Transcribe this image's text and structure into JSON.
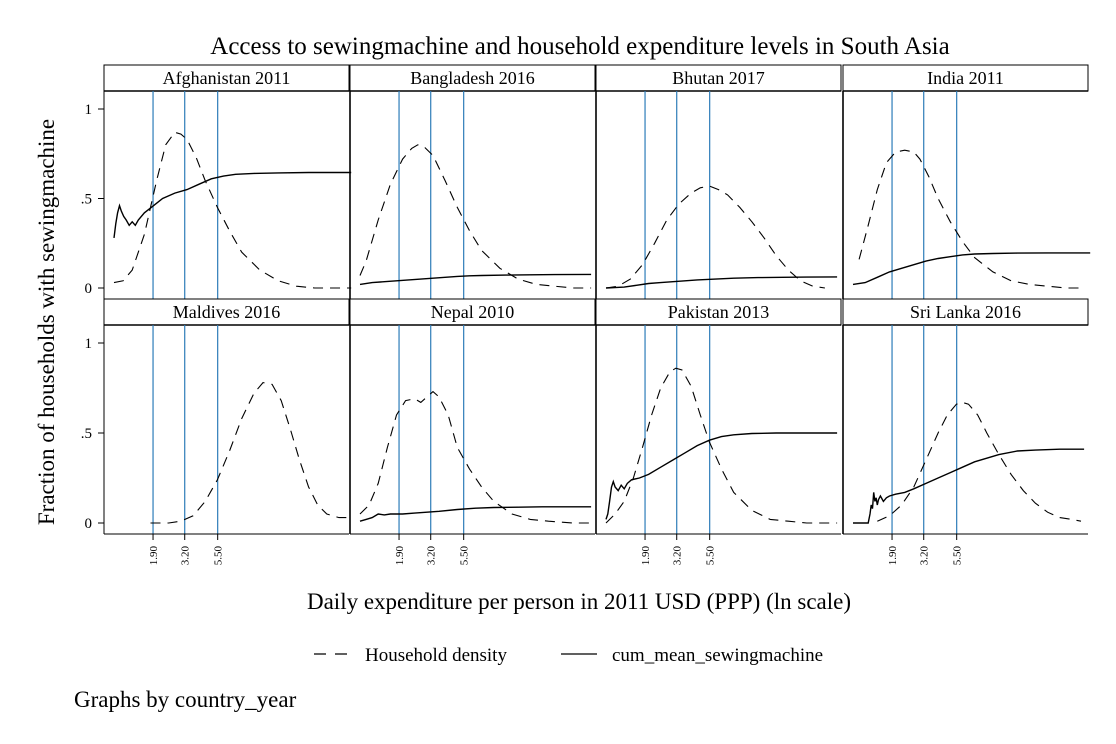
{
  "chart_data": {
    "type": "line",
    "title": "Access to sewingmachine and household expenditure levels in South Asia",
    "xlabel": "Daily expenditure per person in 2011 USD (PPP) (ln scale)",
    "ylabel": "Fraction of households with sewingmachine",
    "note": "Graphs by country_year",
    "ylim": [
      0,
      1
    ],
    "xlim": [
      0,
      3.7
    ],
    "y_ticks": [
      {
        "value": 0,
        "label": "0"
      },
      {
        "value": 0.5,
        "label": ".5"
      },
      {
        "value": 1,
        "label": "1"
      }
    ],
    "x_ticks": [
      {
        "value": 0.642,
        "label": "1.90"
      },
      {
        "value": 1.163,
        "label": "3.20"
      },
      {
        "value": 1.705,
        "label": "5.50"
      }
    ],
    "reference_lines": [
      0.642,
      1.163,
      1.705
    ],
    "reference_line_color": "#2d7cb8",
    "grid": false,
    "legend": {
      "placement": "bottom",
      "entries": [
        {
          "label": "Household density",
          "style": "dashed"
        },
        {
          "label": "cum_mean_sewingmachine",
          "style": "solid"
        }
      ]
    },
    "panels": [
      {
        "title": "Afghanistan 2011",
        "density": [
          [
            0.0,
            0.03
          ],
          [
            0.15,
            0.04
          ],
          [
            0.3,
            0.1
          ],
          [
            0.5,
            0.3
          ],
          [
            0.7,
            0.6
          ],
          [
            0.85,
            0.8
          ],
          [
            1.0,
            0.87
          ],
          [
            1.1,
            0.86
          ],
          [
            1.2,
            0.83
          ],
          [
            1.35,
            0.73
          ],
          [
            1.5,
            0.6
          ],
          [
            1.7,
            0.45
          ],
          [
            1.9,
            0.32
          ],
          [
            2.1,
            0.2
          ],
          [
            2.4,
            0.1
          ],
          [
            2.7,
            0.04
          ],
          [
            3.0,
            0.01
          ],
          [
            3.3,
            0.0
          ],
          [
            3.9,
            0.0
          ]
        ],
        "cum_mean": [
          [
            0.0,
            0.28
          ],
          [
            0.03,
            0.36
          ],
          [
            0.06,
            0.42
          ],
          [
            0.09,
            0.46
          ],
          [
            0.12,
            0.43
          ],
          [
            0.16,
            0.4
          ],
          [
            0.2,
            0.38
          ],
          [
            0.25,
            0.35
          ],
          [
            0.3,
            0.37
          ],
          [
            0.35,
            0.35
          ],
          [
            0.4,
            0.38
          ],
          [
            0.5,
            0.42
          ],
          [
            0.65,
            0.46
          ],
          [
            0.8,
            0.5
          ],
          [
            1.0,
            0.53
          ],
          [
            1.2,
            0.55
          ],
          [
            1.4,
            0.58
          ],
          [
            1.6,
            0.61
          ],
          [
            1.8,
            0.625
          ],
          [
            2.0,
            0.635
          ],
          [
            2.3,
            0.64
          ],
          [
            2.7,
            0.643
          ],
          [
            3.2,
            0.645
          ],
          [
            3.9,
            0.645
          ]
        ]
      },
      {
        "title": "Bangladesh 2016",
        "density": [
          [
            0.0,
            0.07
          ],
          [
            0.1,
            0.15
          ],
          [
            0.3,
            0.38
          ],
          [
            0.5,
            0.58
          ],
          [
            0.7,
            0.72
          ],
          [
            0.85,
            0.78
          ],
          [
            0.95,
            0.8
          ],
          [
            1.05,
            0.79
          ],
          [
            1.2,
            0.74
          ],
          [
            1.4,
            0.6
          ],
          [
            1.6,
            0.45
          ],
          [
            1.8,
            0.32
          ],
          [
            2.0,
            0.21
          ],
          [
            2.3,
            0.11
          ],
          [
            2.6,
            0.05
          ],
          [
            2.9,
            0.02
          ],
          [
            3.2,
            0.01
          ],
          [
            3.5,
            0.0
          ],
          [
            3.8,
            0.0
          ]
        ],
        "cum_mean": [
          [
            0.0,
            0.02
          ],
          [
            0.2,
            0.03
          ],
          [
            0.4,
            0.035
          ],
          [
            0.6,
            0.04
          ],
          [
            0.8,
            0.045
          ],
          [
            1.0,
            0.05
          ],
          [
            1.2,
            0.055
          ],
          [
            1.4,
            0.06
          ],
          [
            1.6,
            0.065
          ],
          [
            1.8,
            0.068
          ],
          [
            2.0,
            0.07
          ],
          [
            2.4,
            0.072
          ],
          [
            2.8,
            0.074
          ],
          [
            3.2,
            0.075
          ],
          [
            3.8,
            0.076
          ]
        ]
      },
      {
        "title": "Bhutan 2017",
        "density": [
          [
            0.0,
            0.0
          ],
          [
            0.2,
            0.01
          ],
          [
            0.4,
            0.05
          ],
          [
            0.6,
            0.13
          ],
          [
            0.8,
            0.25
          ],
          [
            1.0,
            0.38
          ],
          [
            1.2,
            0.47
          ],
          [
            1.4,
            0.53
          ],
          [
            1.55,
            0.56
          ],
          [
            1.7,
            0.57
          ],
          [
            1.85,
            0.55
          ],
          [
            2.0,
            0.52
          ],
          [
            2.2,
            0.45
          ],
          [
            2.4,
            0.37
          ],
          [
            2.6,
            0.28
          ],
          [
            2.8,
            0.18
          ],
          [
            3.0,
            0.1
          ],
          [
            3.2,
            0.04
          ],
          [
            3.4,
            0.01
          ],
          [
            3.6,
            0.0
          ]
        ],
        "cum_mean": [
          [
            0.0,
            0.0
          ],
          [
            0.3,
            0.005
          ],
          [
            0.5,
            0.015
          ],
          [
            0.7,
            0.025
          ],
          [
            0.9,
            0.03
          ],
          [
            1.1,
            0.035
          ],
          [
            1.3,
            0.04
          ],
          [
            1.5,
            0.045
          ],
          [
            1.8,
            0.05
          ],
          [
            2.1,
            0.055
          ],
          [
            2.5,
            0.058
          ],
          [
            2.9,
            0.06
          ],
          [
            3.3,
            0.061
          ],
          [
            3.8,
            0.062
          ]
        ]
      },
      {
        "title": "India 2011",
        "density": [
          [
            0.1,
            0.16
          ],
          [
            0.25,
            0.35
          ],
          [
            0.4,
            0.55
          ],
          [
            0.55,
            0.7
          ],
          [
            0.7,
            0.76
          ],
          [
            0.85,
            0.77
          ],
          [
            1.0,
            0.76
          ],
          [
            1.1,
            0.72
          ],
          [
            1.25,
            0.62
          ],
          [
            1.4,
            0.5
          ],
          [
            1.6,
            0.37
          ],
          [
            1.8,
            0.26
          ],
          [
            2.0,
            0.17
          ],
          [
            2.3,
            0.09
          ],
          [
            2.6,
            0.04
          ],
          [
            2.9,
            0.02
          ],
          [
            3.2,
            0.01
          ],
          [
            3.5,
            0.0
          ],
          [
            3.8,
            0.0
          ]
        ],
        "cum_mean": [
          [
            0.0,
            0.02
          ],
          [
            0.2,
            0.03
          ],
          [
            0.4,
            0.06
          ],
          [
            0.6,
            0.09
          ],
          [
            0.8,
            0.11
          ],
          [
            1.0,
            0.13
          ],
          [
            1.2,
            0.15
          ],
          [
            1.4,
            0.165
          ],
          [
            1.6,
            0.175
          ],
          [
            1.8,
            0.185
          ],
          [
            2.0,
            0.19
          ],
          [
            2.3,
            0.193
          ],
          [
            2.7,
            0.195
          ],
          [
            3.2,
            0.196
          ],
          [
            3.9,
            0.196
          ]
        ]
      },
      {
        "title": "Maldives 2016",
        "density": [
          [
            0.6,
            0.0
          ],
          [
            0.9,
            0.0
          ],
          [
            1.1,
            0.01
          ],
          [
            1.3,
            0.04
          ],
          [
            1.5,
            0.12
          ],
          [
            1.7,
            0.24
          ],
          [
            1.9,
            0.4
          ],
          [
            2.1,
            0.58
          ],
          [
            2.3,
            0.72
          ],
          [
            2.45,
            0.78
          ],
          [
            2.6,
            0.77
          ],
          [
            2.75,
            0.68
          ],
          [
            2.9,
            0.52
          ],
          [
            3.05,
            0.35
          ],
          [
            3.2,
            0.2
          ],
          [
            3.35,
            0.1
          ],
          [
            3.5,
            0.05
          ],
          [
            3.7,
            0.03
          ],
          [
            3.85,
            0.03
          ]
        ],
        "cum_mean": []
      },
      {
        "title": "Nepal 2010",
        "density": [
          [
            0.0,
            0.05
          ],
          [
            0.15,
            0.1
          ],
          [
            0.3,
            0.22
          ],
          [
            0.45,
            0.42
          ],
          [
            0.6,
            0.6
          ],
          [
            0.75,
            0.68
          ],
          [
            0.9,
            0.69
          ],
          [
            1.0,
            0.67
          ],
          [
            1.1,
            0.7
          ],
          [
            1.2,
            0.73
          ],
          [
            1.3,
            0.7
          ],
          [
            1.45,
            0.6
          ],
          [
            1.6,
            0.42
          ],
          [
            1.8,
            0.3
          ],
          [
            2.0,
            0.2
          ],
          [
            2.2,
            0.12
          ],
          [
            2.5,
            0.05
          ],
          [
            2.8,
            0.02
          ],
          [
            3.1,
            0.01
          ],
          [
            3.5,
            0.0
          ],
          [
            3.8,
            0.0
          ]
        ],
        "cum_mean": [
          [
            0.0,
            0.01
          ],
          [
            0.1,
            0.02
          ],
          [
            0.2,
            0.03
          ],
          [
            0.3,
            0.05
          ],
          [
            0.4,
            0.045
          ],
          [
            0.5,
            0.05
          ],
          [
            0.7,
            0.05
          ],
          [
            0.9,
            0.055
          ],
          [
            1.1,
            0.06
          ],
          [
            1.3,
            0.065
          ],
          [
            1.6,
            0.075
          ],
          [
            1.9,
            0.082
          ],
          [
            2.2,
            0.086
          ],
          [
            2.6,
            0.088
          ],
          [
            3.0,
            0.09
          ],
          [
            3.8,
            0.09
          ]
        ]
      },
      {
        "title": "Pakistan 2013",
        "density": [
          [
            0.0,
            0.0
          ],
          [
            0.15,
            0.05
          ],
          [
            0.3,
            0.12
          ],
          [
            0.45,
            0.25
          ],
          [
            0.6,
            0.42
          ],
          [
            0.75,
            0.6
          ],
          [
            0.9,
            0.75
          ],
          [
            1.05,
            0.84
          ],
          [
            1.15,
            0.86
          ],
          [
            1.25,
            0.85
          ],
          [
            1.4,
            0.76
          ],
          [
            1.55,
            0.6
          ],
          [
            1.7,
            0.45
          ],
          [
            1.9,
            0.3
          ],
          [
            2.1,
            0.17
          ],
          [
            2.4,
            0.07
          ],
          [
            2.7,
            0.02
          ],
          [
            3.0,
            0.01
          ],
          [
            3.3,
            0.0
          ],
          [
            3.8,
            0.0
          ]
        ],
        "cum_mean": [
          [
            0.0,
            0.02
          ],
          [
            0.03,
            0.05
          ],
          [
            0.06,
            0.12
          ],
          [
            0.09,
            0.2
          ],
          [
            0.12,
            0.23
          ],
          [
            0.15,
            0.2
          ],
          [
            0.2,
            0.18
          ],
          [
            0.25,
            0.21
          ],
          [
            0.3,
            0.19
          ],
          [
            0.35,
            0.22
          ],
          [
            0.42,
            0.24
          ],
          [
            0.55,
            0.25
          ],
          [
            0.7,
            0.27
          ],
          [
            0.9,
            0.31
          ],
          [
            1.1,
            0.35
          ],
          [
            1.3,
            0.39
          ],
          [
            1.5,
            0.43
          ],
          [
            1.7,
            0.46
          ],
          [
            1.9,
            0.48
          ],
          [
            2.1,
            0.49
          ],
          [
            2.4,
            0.497
          ],
          [
            2.8,
            0.5
          ],
          [
            3.3,
            0.5
          ],
          [
            3.8,
            0.5
          ]
        ]
      },
      {
        "title": "Sri Lanka 2016",
        "density": [
          [
            0.4,
            0.01
          ],
          [
            0.6,
            0.04
          ],
          [
            0.8,
            0.1
          ],
          [
            1.0,
            0.2
          ],
          [
            1.2,
            0.35
          ],
          [
            1.4,
            0.5
          ],
          [
            1.55,
            0.6
          ],
          [
            1.7,
            0.66
          ],
          [
            1.8,
            0.67
          ],
          [
            1.9,
            0.66
          ],
          [
            2.05,
            0.6
          ],
          [
            2.2,
            0.5
          ],
          [
            2.4,
            0.38
          ],
          [
            2.6,
            0.27
          ],
          [
            2.8,
            0.18
          ],
          [
            3.0,
            0.11
          ],
          [
            3.2,
            0.06
          ],
          [
            3.4,
            0.03
          ],
          [
            3.6,
            0.02
          ],
          [
            3.75,
            0.01
          ]
        ],
        "cum_mean": [
          [
            0.0,
            0.0
          ],
          [
            0.25,
            0.0
          ],
          [
            0.28,
            0.05
          ],
          [
            0.3,
            0.1
          ],
          [
            0.32,
            0.08
          ],
          [
            0.34,
            0.17
          ],
          [
            0.36,
            0.12
          ],
          [
            0.38,
            0.14
          ],
          [
            0.4,
            0.1
          ],
          [
            0.42,
            0.13
          ],
          [
            0.45,
            0.15
          ],
          [
            0.5,
            0.12
          ],
          [
            0.55,
            0.14
          ],
          [
            0.6,
            0.15
          ],
          [
            0.7,
            0.16
          ],
          [
            0.85,
            0.17
          ],
          [
            1.0,
            0.19
          ],
          [
            1.2,
            0.22
          ],
          [
            1.4,
            0.25
          ],
          [
            1.6,
            0.28
          ],
          [
            1.8,
            0.31
          ],
          [
            2.0,
            0.34
          ],
          [
            2.2,
            0.36
          ],
          [
            2.4,
            0.38
          ],
          [
            2.7,
            0.4
          ],
          [
            3.0,
            0.405
          ],
          [
            3.4,
            0.41
          ],
          [
            3.8,
            0.41
          ]
        ]
      }
    ]
  }
}
